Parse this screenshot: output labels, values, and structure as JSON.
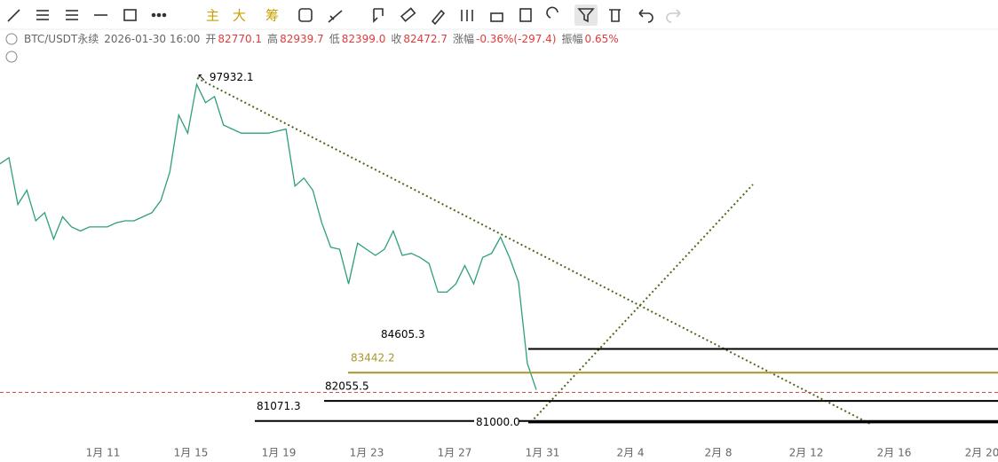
{
  "toolbar": {
    "labels": [
      "主",
      "大",
      "筹"
    ]
  },
  "info": {
    "symbol": "BTC/USDT永续",
    "time": "2026-01-30 16:00",
    "open_label": "开",
    "open": "82770.1",
    "high_label": "高",
    "high": "82939.7",
    "low_label": "低",
    "low": "82399.0",
    "close_label": "收",
    "close": "82472.7",
    "change_label": "涨幅",
    "change": "-0.36%(-297.4)",
    "amplitude_label": "振幅",
    "amplitude": "0.65%"
  },
  "chart": {
    "ylim": [
      80100,
      100000
    ],
    "x_labels": [
      "1月 11",
      "1月 15",
      "1月 19",
      "1月 23",
      "1月 27",
      "1月 31",
      "2月 4",
      "2月 8",
      "2月 12",
      "2月 16",
      "2月 20"
    ],
    "price": [
      93700,
      94000,
      91700,
      92400,
      90900,
      91300,
      90000,
      91100,
      90600,
      90400,
      90600,
      90600,
      90600,
      90800,
      90900,
      90900,
      91100,
      91300,
      91900,
      93300,
      96100,
      95200,
      97600,
      96700,
      97000,
      95600,
      95400,
      95200,
      95200,
      95200,
      95200,
      95300,
      95400,
      92600,
      93000,
      92400,
      90800,
      89600,
      89500,
      87800,
      89800,
      89500,
      89200,
      89500,
      90400,
      89200,
      89300,
      89100,
      88800,
      87400,
      87400,
      87800,
      88700,
      87800,
      89100,
      89300,
      90100,
      89100,
      87900,
      83900,
      82600
    ],
    "levels": [
      {
        "value": 97932.1,
        "label": "↖ 97932.1",
        "color": "#000000"
      },
      {
        "value": 84605.3,
        "color": "#000000"
      },
      {
        "value": 83442.2,
        "color": "#a8962c"
      },
      {
        "value": 82055.5,
        "color": "#000000"
      },
      {
        "value": 81071.3,
        "color": "#000000"
      },
      {
        "value": 81000,
        "label": "81000.0",
        "color": "#000000"
      }
    ]
  }
}
